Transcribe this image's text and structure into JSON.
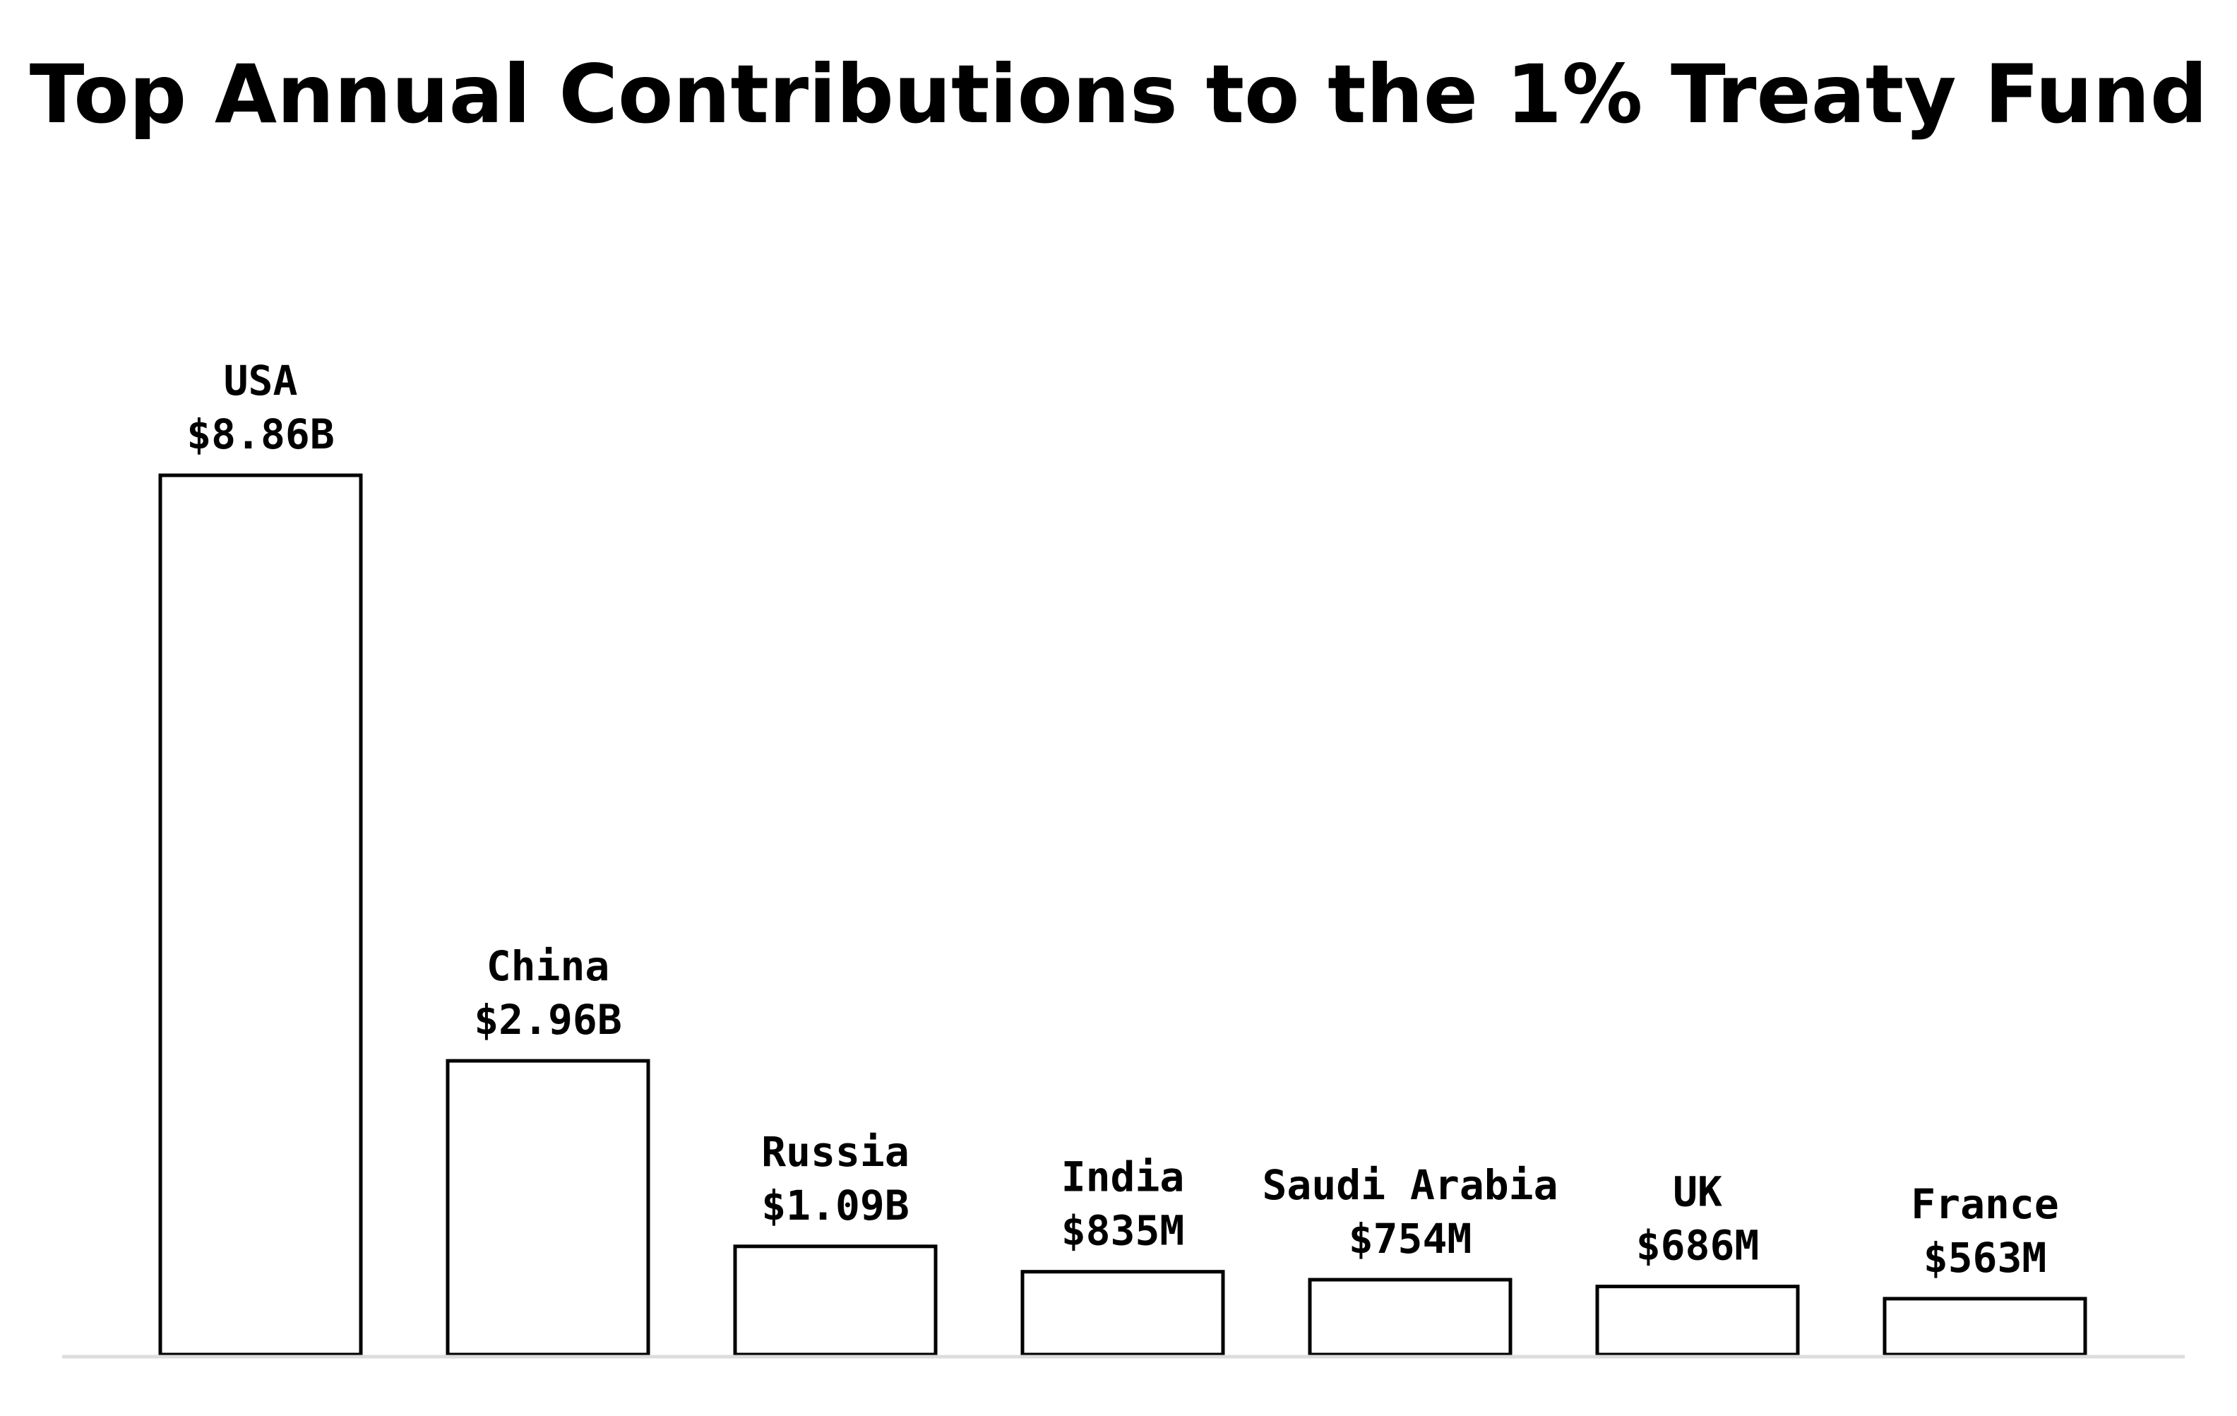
{
  "chart_data": {
    "type": "bar",
    "title": "Top Annual Contributions to the 1% Treaty Fund",
    "xlabel": "",
    "ylabel": "",
    "unit": "USD",
    "categories": [
      "USA",
      "China",
      "Russia",
      "India",
      "Saudi Arabia",
      "UK",
      "France"
    ],
    "values": [
      8.86,
      2.96,
      1.09,
      0.835,
      0.754,
      0.686,
      0.563
    ],
    "value_units": "billions",
    "value_labels": [
      "$8.86B",
      "$2.96B",
      "$1.09B",
      "$835M",
      "$754M",
      "$686M",
      "$563M"
    ],
    "ylim": [
      0,
      8.86
    ],
    "grid": false,
    "legend": "none",
    "colors": {
      "bar_fill": "#ffffff",
      "bar_stroke": "#000000",
      "baseline": "#dddddd",
      "text": "#000000"
    }
  }
}
